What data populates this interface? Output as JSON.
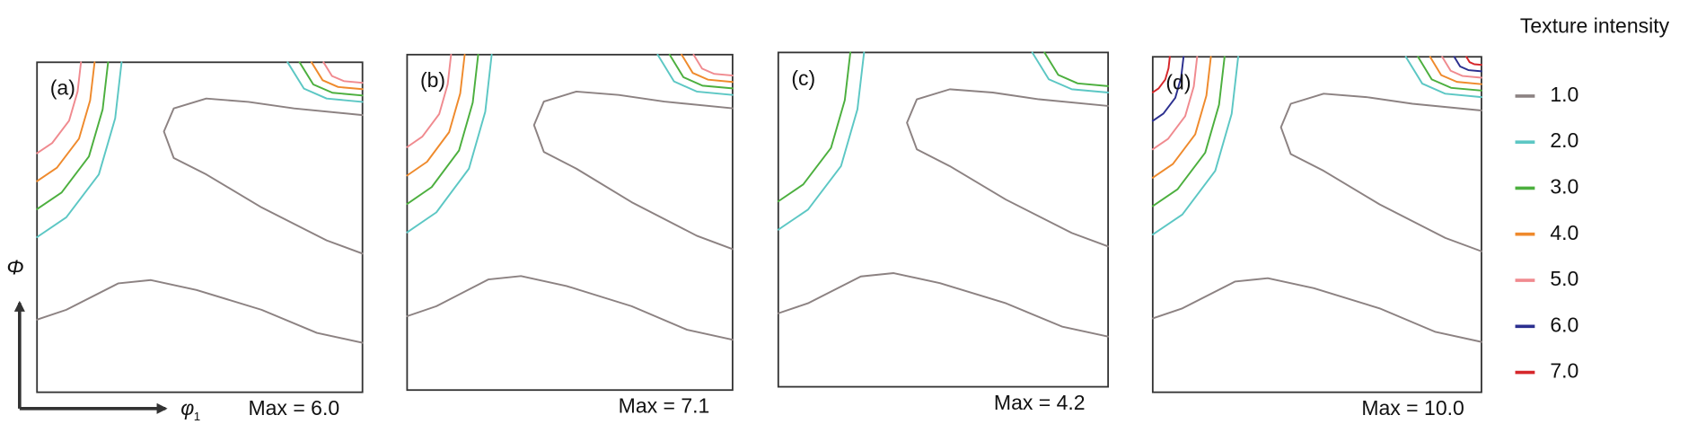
{
  "panels": [
    {
      "tag": "(a)",
      "max": "Max = 6.0"
    },
    {
      "tag": "(b)",
      "max": "Max = 7.1"
    },
    {
      "tag": "(c)",
      "max": "Max = 4.2"
    },
    {
      "tag": "(d)",
      "max": "Max = 10.0"
    }
  ],
  "axes": {
    "vertical": "Φ",
    "horizontal": "φ",
    "horizontal_sub": "1"
  },
  "legend": {
    "title": "Texture intensity",
    "items": [
      {
        "label": "1.0",
        "color": "#8c8282"
      },
      {
        "label": "2.0",
        "color": "#5cc7c4"
      },
      {
        "label": "3.0",
        "color": "#4caf3e"
      },
      {
        "label": "4.0",
        "color": "#ef8a2c"
      },
      {
        "label": "5.0",
        "color": "#f08a8f"
      },
      {
        "label": "6.0",
        "color": "#2b2f8f"
      },
      {
        "label": "7.0",
        "color": "#d6262a"
      }
    ]
  }
}
